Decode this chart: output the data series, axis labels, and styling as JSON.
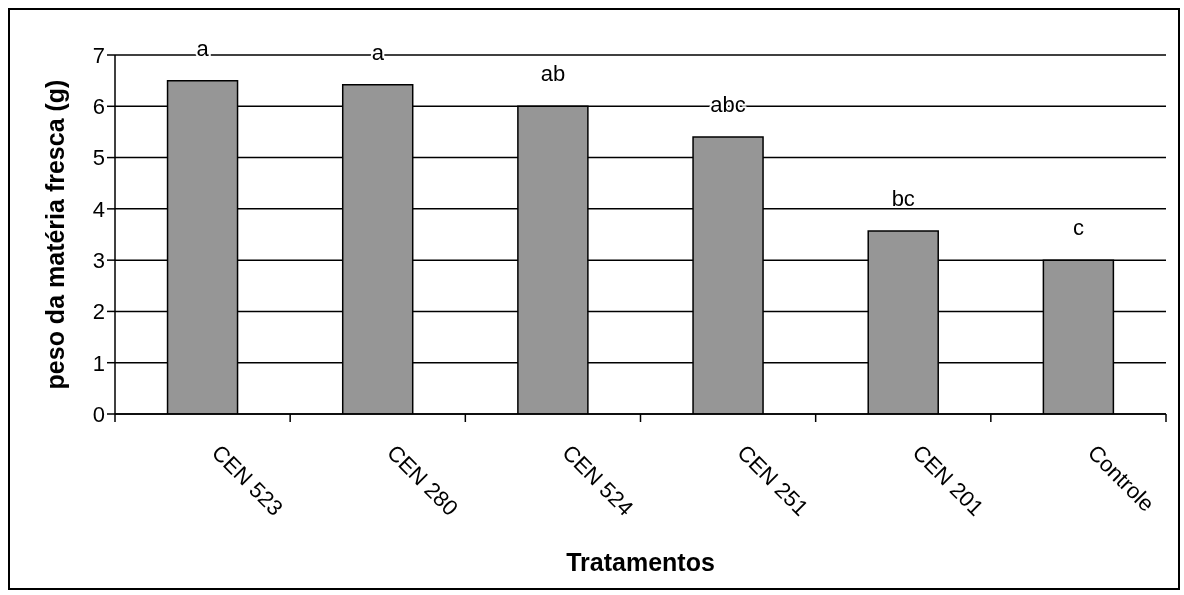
{
  "chart_data": {
    "type": "bar",
    "xlabel": "Tratamentos",
    "ylabel": "peso da matéria fresca (g)",
    "categories": [
      "CEN 523",
      "CEN 280",
      "CEN 524",
      "CEN 251",
      "CEN 201",
      "Controle"
    ],
    "values": [
      6.5,
      6.42,
      6.0,
      5.4,
      3.57,
      3.0
    ],
    "color": "#969696",
    "ylim": [
      0,
      7
    ],
    "yticks": [
      0,
      1,
      2,
      3,
      4,
      5,
      6,
      7
    ],
    "grid": "y",
    "annotations": [
      {
        "text": "a",
        "x": "CEN 523",
        "y": 6.5
      },
      {
        "text": "a",
        "x": "CEN 280",
        "y": 6.42
      },
      {
        "text": "ab",
        "x": "CEN 524",
        "y": 6.0
      },
      {
        "text": "abc",
        "x": "CEN 251",
        "y": 5.4
      },
      {
        "text": "bc",
        "x": "CEN 201",
        "y": 3.57
      },
      {
        "text": "c",
        "x": "Controle",
        "y": 3.0
      }
    ]
  }
}
